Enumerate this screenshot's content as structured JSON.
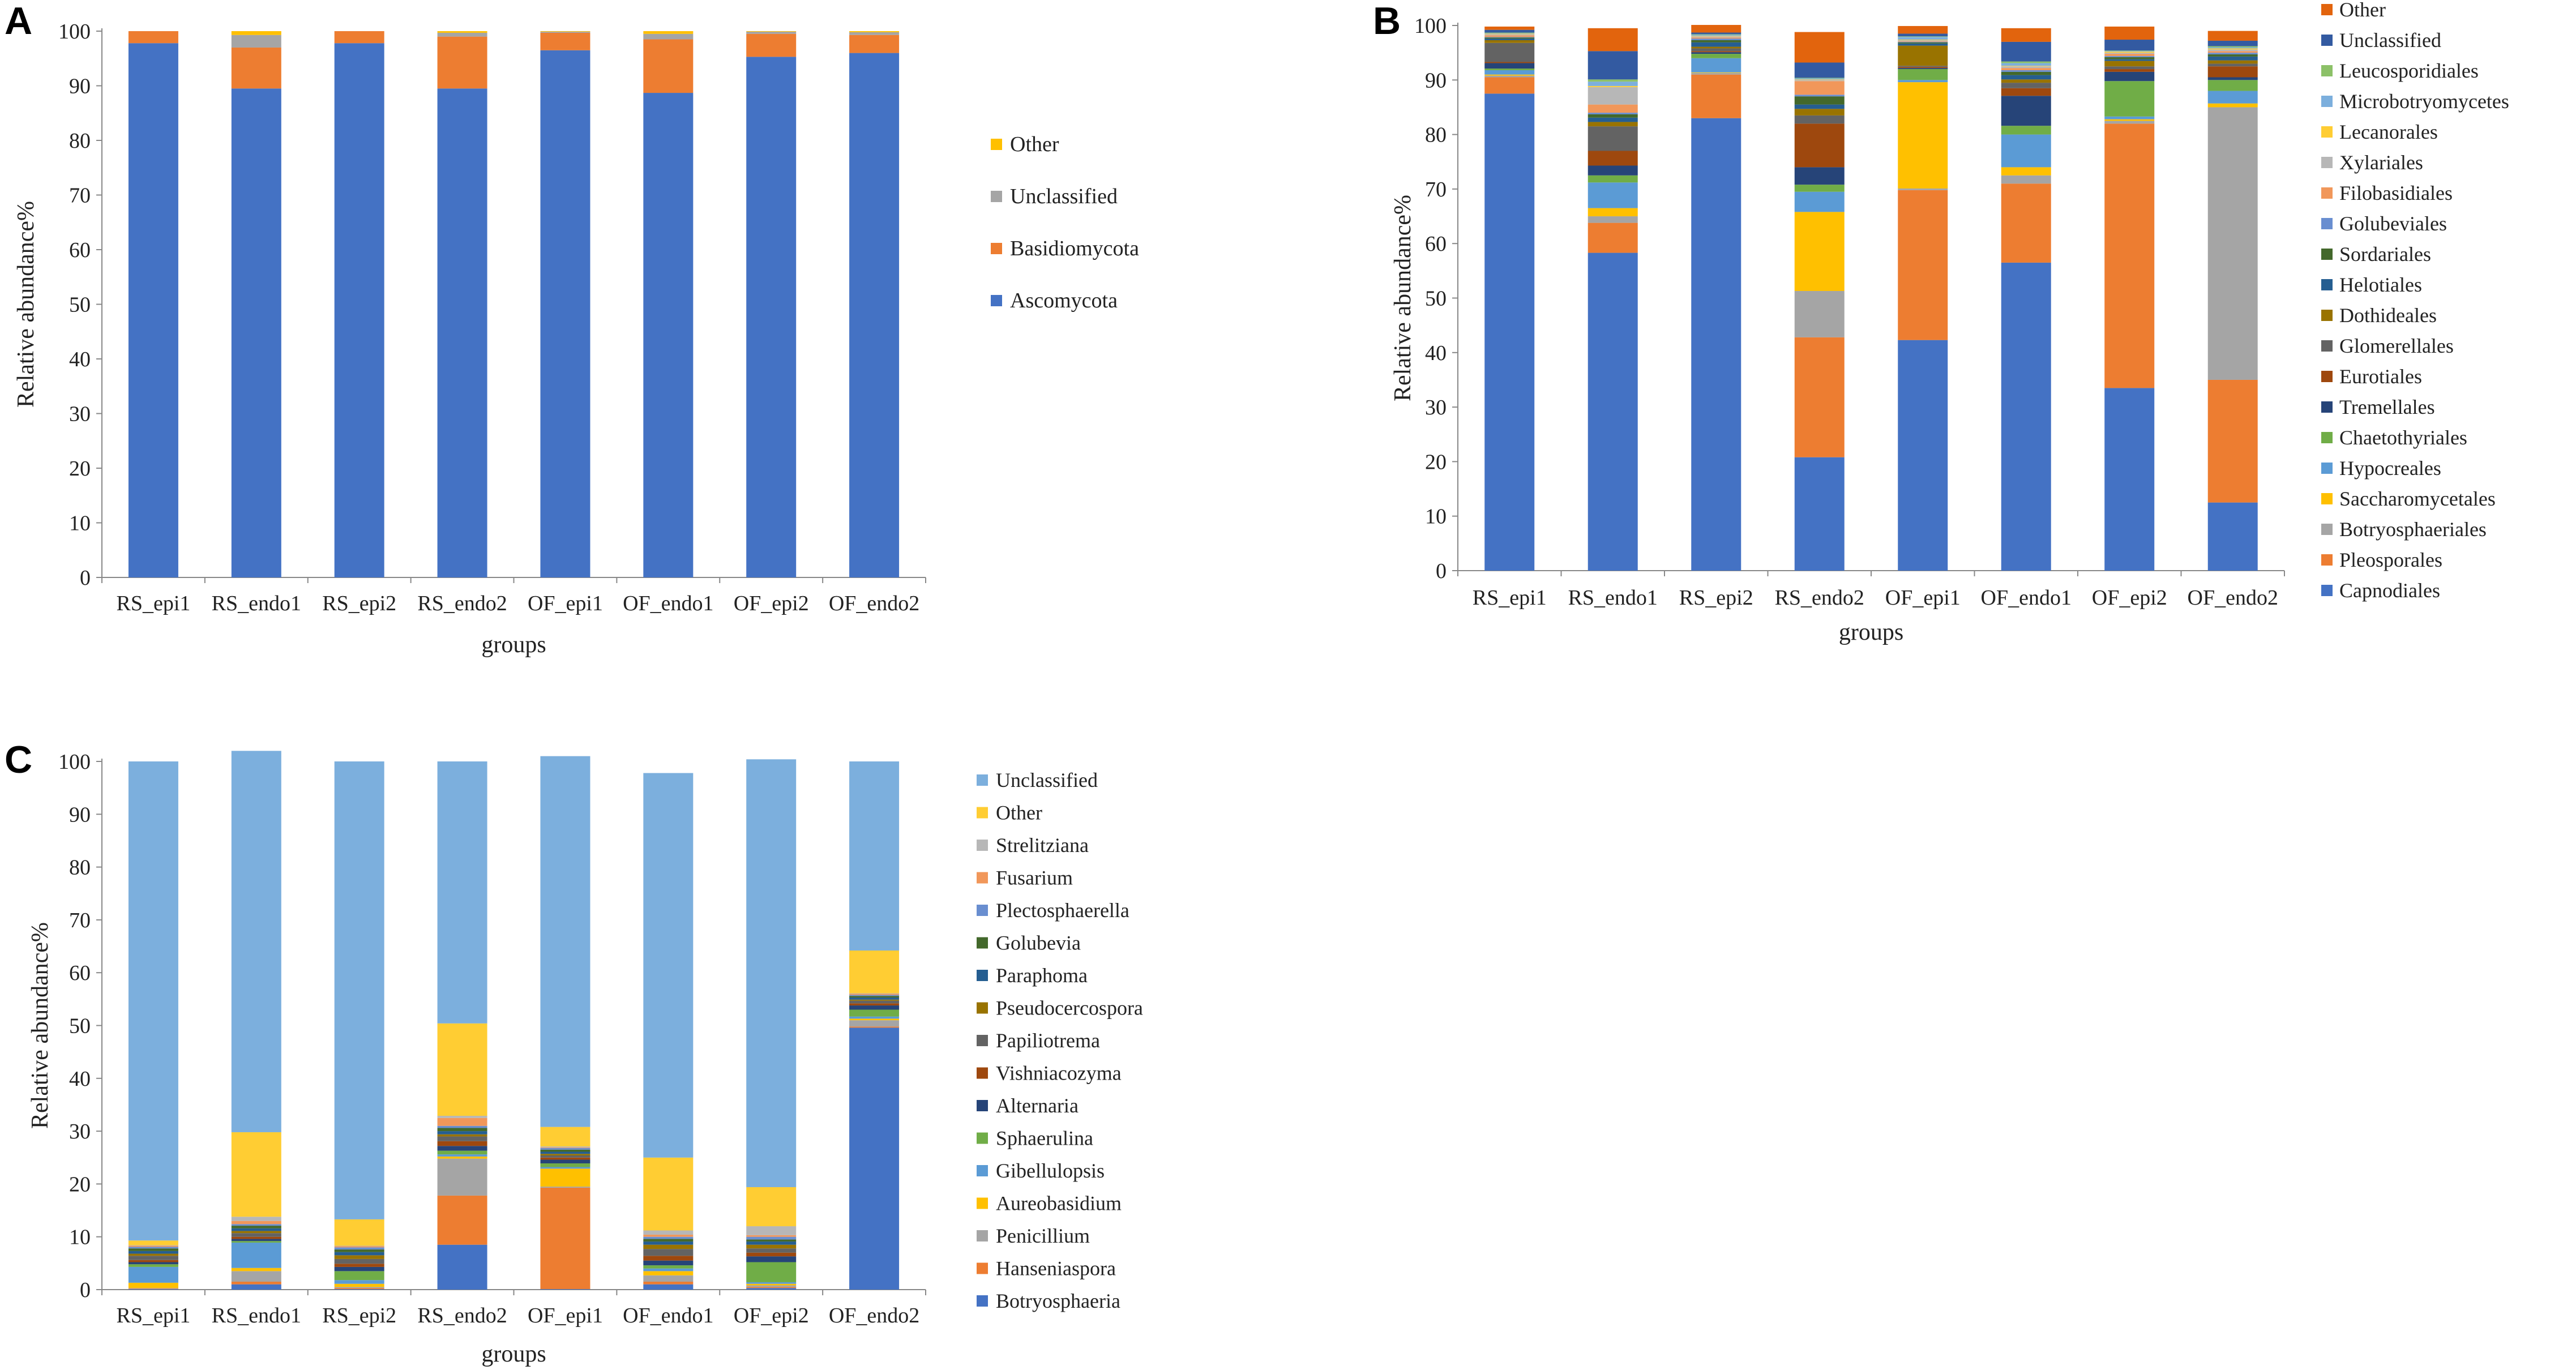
{
  "chart_data": [
    {
      "panel": "A",
      "type": "bar",
      "stacked": true,
      "title": "",
      "xlabel": "groups",
      "ylabel": "Relative abundance%",
      "ylim": [
        0,
        100
      ],
      "yticks": [
        0,
        10,
        20,
        30,
        40,
        50,
        60,
        70,
        80,
        90,
        100
      ],
      "categories": [
        "RS_epi1",
        "RS_endo1",
        "RS_epi2",
        "RS_endo2",
        "OF_epi1",
        "OF_endo1",
        "OF_epi2",
        "OF_endo2"
      ],
      "legend_position": "right",
      "series": [
        {
          "name": "Ascomycota",
          "color": "#4472C4",
          "values": [
            97.8,
            89.5,
            97.8,
            89.5,
            96.5,
            88.7,
            95.3,
            96.0
          ]
        },
        {
          "name": "Basidiomycota",
          "color": "#ED7D31",
          "values": [
            2.2,
            7.5,
            2.2,
            9.5,
            3.2,
            9.8,
            4.2,
            3.3
          ]
        },
        {
          "name": "Unclassified",
          "color": "#A5A5A5",
          "values": [
            0,
            2.3,
            0,
            0.7,
            0.2,
            1.0,
            0.4,
            0.5
          ]
        },
        {
          "name": "Other",
          "color": "#FFC000",
          "values": [
            0,
            0.7,
            0,
            0.3,
            0.1,
            0.5,
            0.1,
            0.2
          ]
        }
      ]
    },
    {
      "panel": "B",
      "type": "bar",
      "stacked": true,
      "title": "",
      "xlabel": "groups",
      "ylabel": "Relative abundance%",
      "ylim": [
        0,
        100
      ],
      "yticks": [
        0,
        10,
        20,
        30,
        40,
        50,
        60,
        70,
        80,
        90,
        100
      ],
      "categories": [
        "RS_epi1",
        "RS_endo1",
        "RS_epi2",
        "RS_endo2",
        "OF_epi1",
        "OF_endo1",
        "OF_epi2",
        "OF_endo2"
      ],
      "legend_position": "right",
      "series": [
        {
          "name": "Capnodiales",
          "color": "#4472C4",
          "values": [
            87.5,
            58.3,
            83.0,
            20.8,
            42.3,
            56.5,
            33.5,
            12.5
          ]
        },
        {
          "name": "Pleosporales",
          "color": "#ED7D31",
          "values": [
            3.0,
            5.5,
            8.0,
            22.0,
            27.5,
            14.5,
            48.5,
            22.5
          ]
        },
        {
          "name": "Botryosphaeriales",
          "color": "#A5A5A5",
          "values": [
            0.3,
            1.2,
            0.3,
            8.5,
            0.3,
            1.5,
            0.5,
            50.0
          ]
        },
        {
          "name": "Saccharomycetales",
          "color": "#FFC000",
          "values": [
            0.2,
            1.5,
            0.1,
            14.5,
            19.5,
            1.5,
            0.3,
            0.7
          ]
        },
        {
          "name": "Hypocreales",
          "color": "#5B9BD5",
          "values": [
            0.8,
            4.7,
            2.6,
            3.7,
            0.4,
            6.0,
            0.5,
            2.3
          ]
        },
        {
          "name": "Chaetothyriales",
          "color": "#70AD47",
          "values": [
            0.3,
            1.3,
            0.8,
            1.3,
            2.0,
            1.6,
            6.5,
            2.0
          ]
        },
        {
          "name": "Tremellales",
          "color": "#264478",
          "values": [
            1.0,
            1.8,
            0.3,
            3.2,
            0.2,
            5.5,
            1.7,
            0.5
          ]
        },
        {
          "name": "Eurotiales",
          "color": "#9E480E",
          "values": [
            0.2,
            2.7,
            0.2,
            8.0,
            0.2,
            1.4,
            0.5,
            2.0
          ]
        },
        {
          "name": "Glomerellales",
          "color": "#636363",
          "values": [
            3.5,
            4.5,
            0.5,
            1.5,
            0.2,
            1.0,
            0.5,
            0.5
          ]
        },
        {
          "name": "Dothideales",
          "color": "#997300",
          "values": [
            0.5,
            0.8,
            0.3,
            1.2,
            3.7,
            0.6,
            1.0,
            0.6
          ]
        },
        {
          "name": "Helotiales",
          "color": "#255E91",
          "values": [
            0.3,
            0.8,
            0.8,
            0.8,
            0.4,
            0.8,
            0.3,
            0.7
          ]
        },
        {
          "name": "Sordariales",
          "color": "#43682B",
          "values": [
            0.2,
            0.6,
            0.4,
            1.5,
            0.2,
            0.6,
            0.4,
            0.4
          ]
        },
        {
          "name": "Golubeviales",
          "color": "#698ED0",
          "values": [
            0.1,
            0.3,
            0.3,
            0.3,
            0.1,
            0.3,
            0.2,
            0.3
          ]
        },
        {
          "name": "Filobasidiales",
          "color": "#F1975A",
          "values": [
            0.3,
            1.5,
            0.2,
            2.5,
            0.1,
            0.4,
            0.4,
            0.3
          ]
        },
        {
          "name": "Xylariales",
          "color": "#B7B7B7",
          "values": [
            0.2,
            3.2,
            0.2,
            0.2,
            0.2,
            0.3,
            0.2,
            0.3
          ]
        },
        {
          "name": "Lecanorales",
          "color": "#FFCD33",
          "values": [
            0.1,
            0.2,
            0.1,
            0.1,
            0.1,
            0.1,
            0.2,
            0.2
          ]
        },
        {
          "name": "Microbotryomycetes",
          "color": "#7CAFDD",
          "values": [
            0.1,
            0.8,
            0.2,
            0.2,
            0.5,
            0.5,
            0.1,
            0.2
          ]
        },
        {
          "name": "Leucosporidiales",
          "color": "#8CC168",
          "values": [
            0.1,
            0.4,
            0.1,
            0.1,
            0.1,
            0.3,
            0.1,
            0.2
          ]
        },
        {
          "name": "Unclassified",
          "color": "#335AA1",
          "values": [
            0.5,
            5.2,
            0.3,
            2.8,
            0.5,
            3.6,
            2.0,
            1.0
          ]
        },
        {
          "name": "Other",
          "color": "#E2640D",
          "values": [
            0.6,
            4.2,
            1.4,
            5.6,
            1.4,
            2.5,
            2.4,
            1.8
          ]
        }
      ]
    },
    {
      "panel": "C",
      "type": "bar",
      "stacked": true,
      "title": "",
      "xlabel": "groups",
      "ylabel": "Relative abundance%",
      "ylim": [
        0,
        100
      ],
      "yticks": [
        0,
        10,
        20,
        30,
        40,
        50,
        60,
        70,
        80,
        90,
        100
      ],
      "categories": [
        "RS_epi1",
        "RS_endo1",
        "RS_epi2",
        "RS_endo2",
        "OF_epi1",
        "OF_endo1",
        "OF_epi2",
        "OF_endo2"
      ],
      "legend_position": "right",
      "series": [
        {
          "name": "Botryosphaeria",
          "color": "#4472C4",
          "values": [
            0.1,
            1.0,
            0.1,
            8.5,
            0.1,
            1.0,
            0.3,
            49.6
          ]
        },
        {
          "name": "Hanseniaspora",
          "color": "#ED7D31",
          "values": [
            0.1,
            0.5,
            0.2,
            9.3,
            19.2,
            0.5,
            0.2,
            0.2
          ]
        },
        {
          "name": "Penicillium",
          "color": "#A5A5A5",
          "values": [
            0.1,
            2.0,
            0.2,
            7.0,
            0.2,
            1.2,
            0.3,
            1.2
          ]
        },
        {
          "name": "Aureobasidium",
          "color": "#FFC000",
          "values": [
            1.0,
            0.6,
            0.6,
            0.4,
            3.4,
            0.8,
            0.3,
            0.3
          ]
        },
        {
          "name": "Gibellulopsis",
          "color": "#5B9BD5",
          "values": [
            3.0,
            4.8,
            0.7,
            0.4,
            0.3,
            0.5,
            0.3,
            0.4
          ]
        },
        {
          "name": "Sphaerulina",
          "color": "#70AD47",
          "values": [
            0.5,
            0.3,
            1.7,
            0.7,
            0.7,
            0.6,
            3.8,
            1.3
          ]
        },
        {
          "name": "Alternaria",
          "color": "#264478",
          "values": [
            0.4,
            0.4,
            0.8,
            0.9,
            0.7,
            0.9,
            1.1,
            0.8
          ]
        },
        {
          "name": "Vishniacozyma",
          "color": "#9E480E",
          "values": [
            0.4,
            0.4,
            0.6,
            0.9,
            0.4,
            0.9,
            0.7,
            0.4
          ]
        },
        {
          "name": "Papiliotrema",
          "color": "#636363",
          "values": [
            0.8,
            0.7,
            0.9,
            0.9,
            0.4,
            1.3,
            0.8,
            0.5
          ]
        },
        {
          "name": "Pseudocercospora",
          "color": "#997300",
          "values": [
            0.4,
            0.4,
            0.7,
            0.4,
            0.3,
            0.8,
            0.7,
            0.2
          ]
        },
        {
          "name": "Paraphoma",
          "color": "#255E91",
          "values": [
            0.5,
            0.5,
            0.6,
            0.6,
            0.4,
            0.6,
            0.6,
            0.4
          ]
        },
        {
          "name": "Golubevia",
          "color": "#43682B",
          "values": [
            0.5,
            0.5,
            0.5,
            0.6,
            0.4,
            0.5,
            0.4,
            0.3
          ]
        },
        {
          "name": "Plectosphaerella",
          "color": "#698ED0",
          "values": [
            0.3,
            0.3,
            0.4,
            0.4,
            0.3,
            0.4,
            0.5,
            0.2
          ]
        },
        {
          "name": "Fusarium",
          "color": "#F1975A",
          "values": [
            0.2,
            0.6,
            0.2,
            1.5,
            0.1,
            0.4,
            0.3,
            0.2
          ]
        },
        {
          "name": "Strelitziana",
          "color": "#B7B7B7",
          "values": [
            0.1,
            0.8,
            0.1,
            0.4,
            0.2,
            0.8,
            1.7,
            0.1
          ]
        },
        {
          "name": "Other",
          "color": "#FFCD33",
          "values": [
            0.9,
            16.0,
            5.0,
            17.5,
            3.7,
            13.8,
            7.4,
            8.1
          ]
        },
        {
          "name": "Unclassified",
          "color": "#7CAFDD",
          "values": [
            90.7,
            72.2,
            86.7,
            49.6,
            70.2,
            72.8,
            81.0,
            35.8
          ]
        }
      ]
    }
  ]
}
